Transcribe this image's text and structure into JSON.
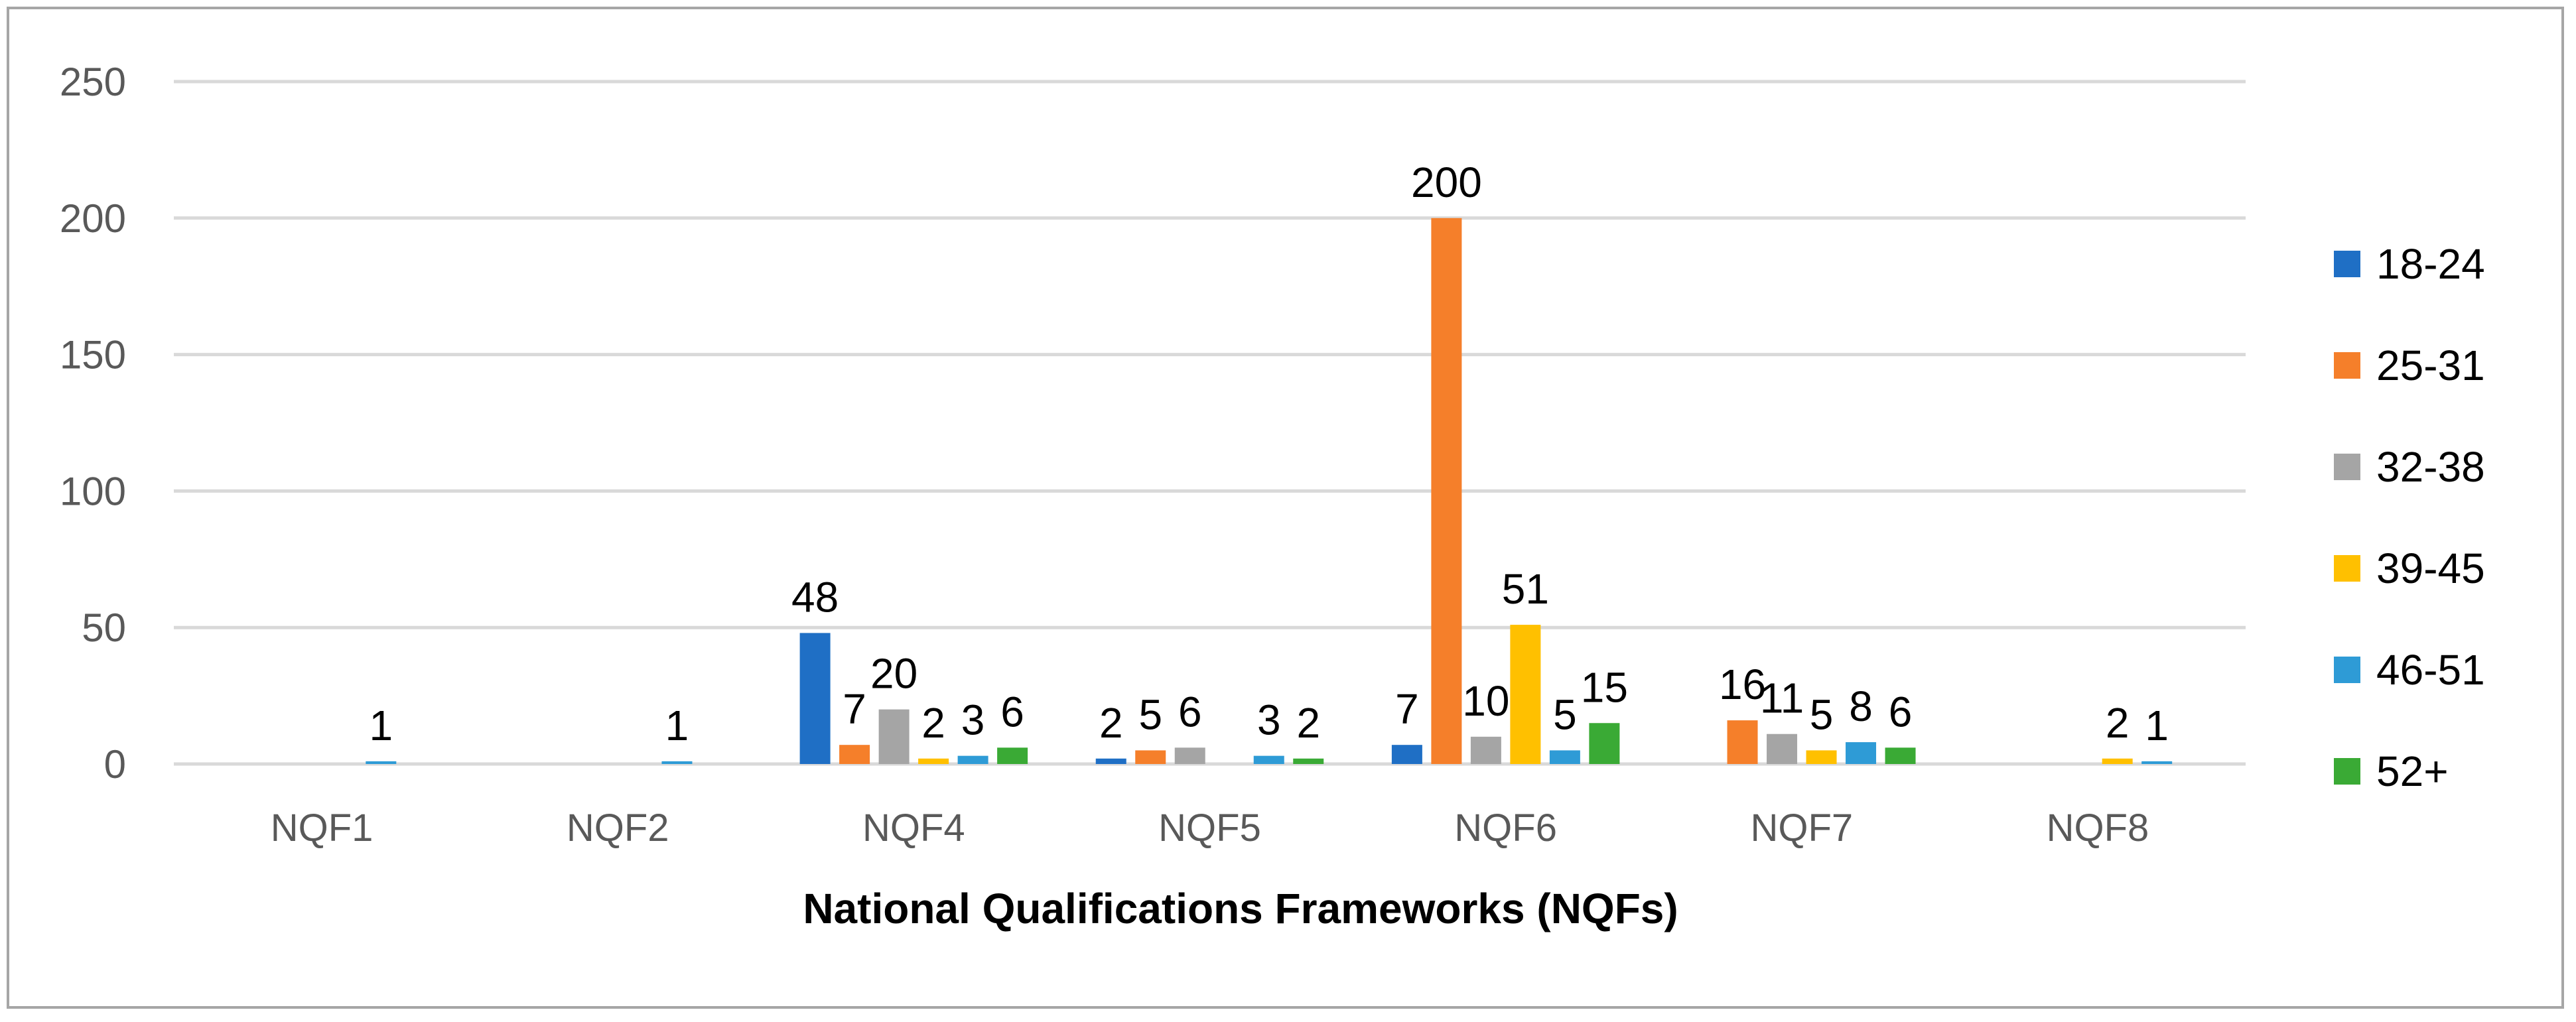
{
  "chart_data": {
    "type": "bar",
    "title": "",
    "xlabel": "National Qualifications Frameworks (NQFs)",
    "ylabel": "",
    "ylim": [
      0,
      250
    ],
    "yticks": [
      0,
      50,
      100,
      150,
      200,
      250
    ],
    "grid": true,
    "legend_position": "right",
    "categories": [
      "NQF1",
      "NQF2",
      "NQF4",
      "NQF5",
      "NQF6",
      "NQF7",
      "NQF8"
    ],
    "series": [
      {
        "name": "18-24",
        "color": "#1f6fc5",
        "values": [
          null,
          null,
          48,
          2,
          7,
          null,
          null
        ]
      },
      {
        "name": "25-31",
        "color": "#f57f2a",
        "values": [
          null,
          null,
          7,
          5,
          200,
          16,
          null
        ]
      },
      {
        "name": "32-38",
        "color": "#a5a5a5",
        "values": [
          null,
          null,
          20,
          6,
          10,
          11,
          null
        ]
      },
      {
        "name": "39-45",
        "color": "#ffc000",
        "values": [
          null,
          null,
          2,
          null,
          51,
          5,
          2
        ]
      },
      {
        "name": "46-51",
        "color": "#2e9bd6",
        "values": [
          1,
          1,
          3,
          3,
          5,
          8,
          1
        ]
      },
      {
        "name": "52+",
        "color": "#3aaa35",
        "values": [
          null,
          null,
          6,
          2,
          15,
          6,
          null
        ]
      }
    ]
  }
}
